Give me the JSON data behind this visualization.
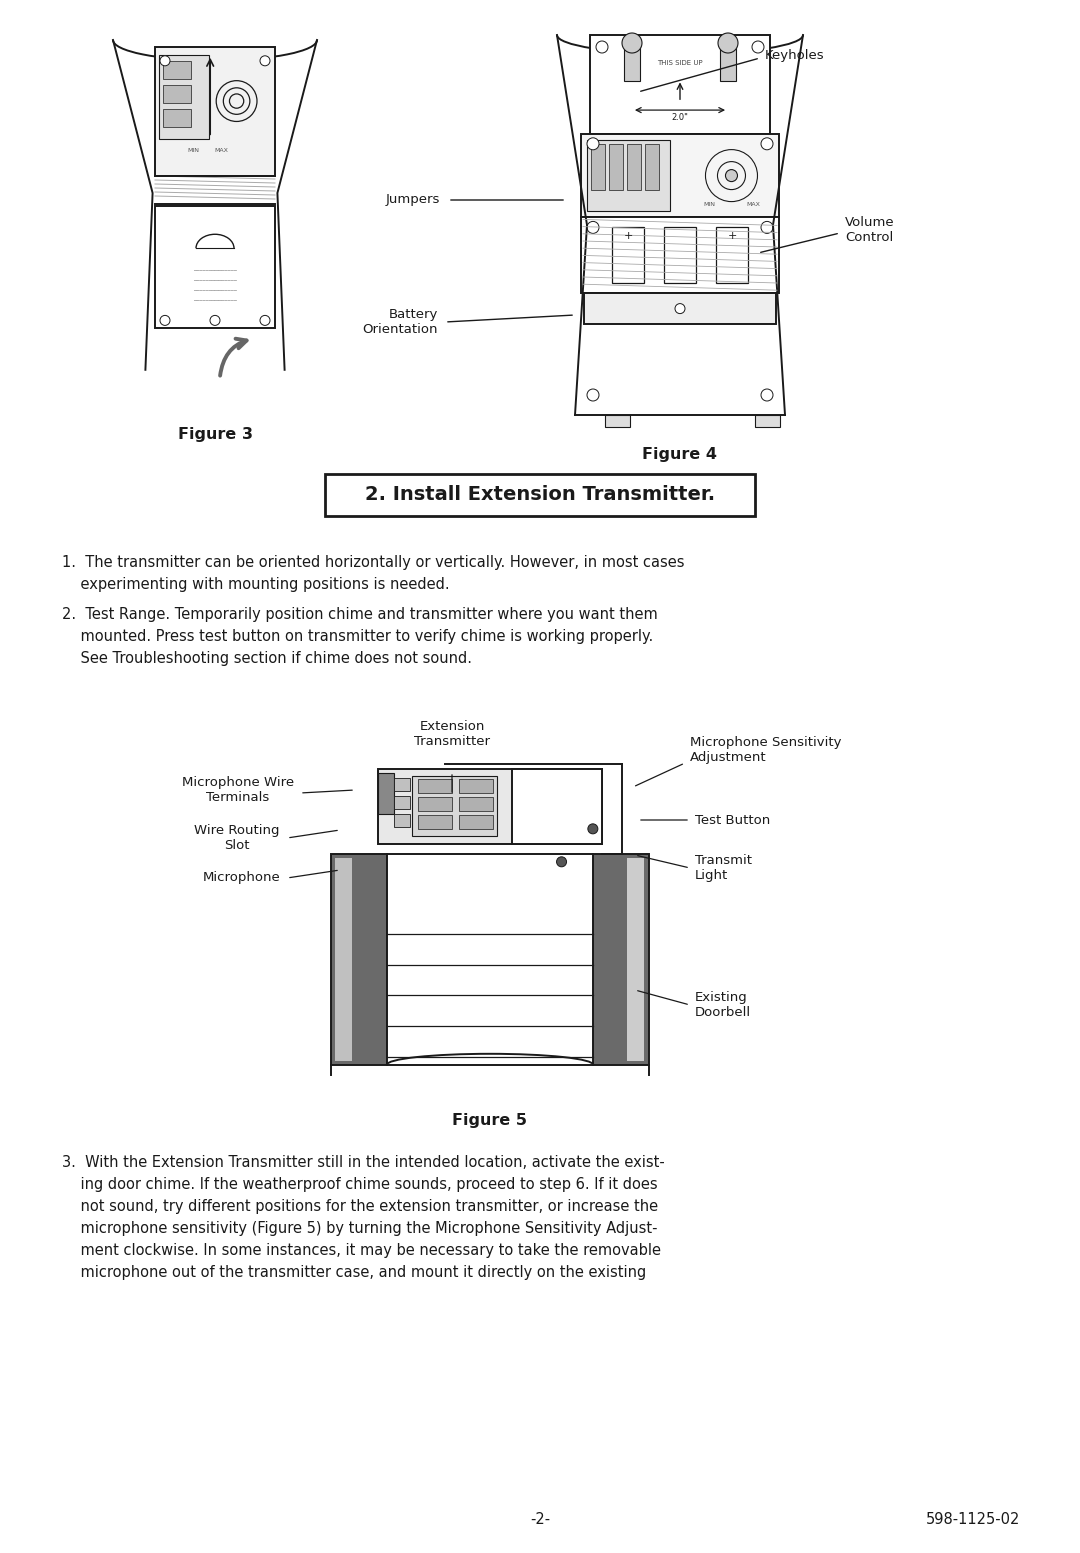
{
  "page_bg": "#ffffff",
  "page_width": 10.8,
  "page_height": 15.53,
  "dpi": 100,
  "fig3_caption": "Figure 3",
  "fig4_caption": "Figure 4",
  "fig5_caption": "Figure 5",
  "keyholes_label": "Keyholes",
  "jumpers_label": "Jumpers",
  "volume_label": "Volume\nControl",
  "battery_label": "Battery\nOrientation",
  "mic_wire_label": "Microphone Wire\nTerminals",
  "ext_trans_label": "Extension\nTransmitter",
  "mic_sens_label": "Microphone Sensitivity\nAdjustment",
  "wire_routing_label": "Wire Routing\nSlot",
  "test_btn_label": "Test Button",
  "microphone_label": "Microphone",
  "transmit_label": "Transmit\nLight",
  "doorbell_label": "Existing\nDoorbell",
  "section_header": "2. Install Extension Transmitter.",
  "body1_line1": "1.  The transmitter can be oriented horizontally or vertically. However, in most cases",
  "body1_line2": "    experimenting with mounting positions is needed.",
  "body2_line1": "2.  Test Range. Temporarily position chime and transmitter where you want them",
  "body2_line2": "    mounted. Press test button on transmitter to verify chime is working properly.",
  "body2_line3": "    See Troubleshooting section if chime does not sound.",
  "body3_line1": "3.  With the Extension Transmitter still in the intended location, activate the exist-",
  "body3_line2": "    ing door chime. If the weatherproof chime sounds, proceed to step 6. If it does",
  "body3_line3": "    not sound, try different positions for the extension transmitter, or increase the",
  "body3_line4": "    microphone sensitivity (Figure 5) by turning the Microphone Sensitivity Adjust-",
  "body3_line5": "    ment clockwise. In some instances, it may be necessary to take the removable",
  "body3_line6": "    microphone out of the transmitter case, and mount it directly on the existing",
  "footer_page": "-2-",
  "footer_model": "598-1125-02",
  "tc": "#1a1a1a",
  "lc": "#1a1a1a",
  "body_fs": 10.5,
  "label_fs": 9.5,
  "caption_fs": 11.5
}
